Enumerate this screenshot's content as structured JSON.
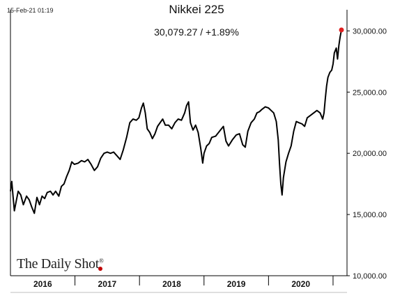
{
  "header": {
    "timestamp": "15-Feb-21 01:19",
    "title": "Nikkei 225",
    "subtitle": "30,079.27  /  +1.89%"
  },
  "watermark": {
    "text": "The Daily Shot",
    "mark": "®"
  },
  "colors": {
    "line": "#000000",
    "last_point": "#e02020",
    "axis": "#000000"
  },
  "chart_data": {
    "type": "line",
    "title": "Nikkei 225",
    "subtitle": "30,079.27 / +1.89%",
    "xlabel": "",
    "ylabel": "",
    "grid": false,
    "legend": "none",
    "x_categories": [
      "2016",
      "2017",
      "2018",
      "2019",
      "2020"
    ],
    "xlim": [
      2016.0,
      2021.13
    ],
    "ylim": [
      10000,
      31500
    ],
    "y_ticks": [
      10000,
      15000,
      20000,
      25000,
      30000
    ],
    "y_tick_labels": [
      "10,000.00",
      "15,000.00",
      "20,000.00",
      "25,000.00",
      "30,000.00"
    ],
    "last_value": 30079.27,
    "series": [
      {
        "values": [
          [
            2016.0,
            16900
          ],
          [
            2016.02,
            17700
          ],
          [
            2016.04,
            16500
          ],
          [
            2016.06,
            15300
          ],
          [
            2016.09,
            16100
          ],
          [
            2016.12,
            16900
          ],
          [
            2016.16,
            16600
          ],
          [
            2016.2,
            15800
          ],
          [
            2016.25,
            16500
          ],
          [
            2016.29,
            16200
          ],
          [
            2016.33,
            15600
          ],
          [
            2016.37,
            15100
          ],
          [
            2016.41,
            16400
          ],
          [
            2016.45,
            15800
          ],
          [
            2016.49,
            16500
          ],
          [
            2016.53,
            16300
          ],
          [
            2016.57,
            16800
          ],
          [
            2016.62,
            16900
          ],
          [
            2016.66,
            16600
          ],
          [
            2016.7,
            16900
          ],
          [
            2016.75,
            16500
          ],
          [
            2016.79,
            17300
          ],
          [
            2016.83,
            17500
          ],
          [
            2016.87,
            18100
          ],
          [
            2016.91,
            18600
          ],
          [
            2016.95,
            19300
          ],
          [
            2016.99,
            19100
          ],
          [
            2017.05,
            19200
          ],
          [
            2017.1,
            19400
          ],
          [
            2017.15,
            19300
          ],
          [
            2017.2,
            19500
          ],
          [
            2017.25,
            19100
          ],
          [
            2017.3,
            18600
          ],
          [
            2017.35,
            18900
          ],
          [
            2017.4,
            19600
          ],
          [
            2017.45,
            20000
          ],
          [
            2017.5,
            20100
          ],
          [
            2017.55,
            20000
          ],
          [
            2017.6,
            20100
          ],
          [
            2017.65,
            19800
          ],
          [
            2017.7,
            19500
          ],
          [
            2017.75,
            20300
          ],
          [
            2017.8,
            21300
          ],
          [
            2017.85,
            22500
          ],
          [
            2017.9,
            22800
          ],
          [
            2017.95,
            22700
          ],
          [
            2017.99,
            22900
          ],
          [
            2018.03,
            23700
          ],
          [
            2018.06,
            24100
          ],
          [
            2018.09,
            23300
          ],
          [
            2018.12,
            22000
          ],
          [
            2018.16,
            21700
          ],
          [
            2018.2,
            21200
          ],
          [
            2018.24,
            21600
          ],
          [
            2018.28,
            22200
          ],
          [
            2018.32,
            22500
          ],
          [
            2018.36,
            22800
          ],
          [
            2018.4,
            22300
          ],
          [
            2018.45,
            22300
          ],
          [
            2018.5,
            22000
          ],
          [
            2018.55,
            22500
          ],
          [
            2018.6,
            22800
          ],
          [
            2018.65,
            22700
          ],
          [
            2018.7,
            23300
          ],
          [
            2018.73,
            23900
          ],
          [
            2018.76,
            24200
          ],
          [
            2018.79,
            22500
          ],
          [
            2018.83,
            21900
          ],
          [
            2018.87,
            22300
          ],
          [
            2018.91,
            21700
          ],
          [
            2018.95,
            20400
          ],
          [
            2018.98,
            19200
          ],
          [
            2019.0,
            20000
          ],
          [
            2019.04,
            20600
          ],
          [
            2019.08,
            20800
          ],
          [
            2019.12,
            21300
          ],
          [
            2019.18,
            21400
          ],
          [
            2019.24,
            21800
          ],
          [
            2019.3,
            22200
          ],
          [
            2019.34,
            21000
          ],
          [
            2019.38,
            20600
          ],
          [
            2019.44,
            21100
          ],
          [
            2019.5,
            21500
          ],
          [
            2019.55,
            21600
          ],
          [
            2019.6,
            20700
          ],
          [
            2019.64,
            20500
          ],
          [
            2019.68,
            21800
          ],
          [
            2019.73,
            22500
          ],
          [
            2019.78,
            22800
          ],
          [
            2019.82,
            23300
          ],
          [
            2019.86,
            23400
          ],
          [
            2019.9,
            23600
          ],
          [
            2019.95,
            23800
          ],
          [
            2020.0,
            23700
          ],
          [
            2020.04,
            23500
          ],
          [
            2020.08,
            23300
          ],
          [
            2020.12,
            22600
          ],
          [
            2020.15,
            21100
          ],
          [
            2020.17,
            19200
          ],
          [
            2020.19,
            17500
          ],
          [
            2020.21,
            16600
          ],
          [
            2020.23,
            18000
          ],
          [
            2020.27,
            19300
          ],
          [
            2020.31,
            20000
          ],
          [
            2020.35,
            20600
          ],
          [
            2020.39,
            21800
          ],
          [
            2020.43,
            22600
          ],
          [
            2020.47,
            22500
          ],
          [
            2020.52,
            22400
          ],
          [
            2020.56,
            22200
          ],
          [
            2020.6,
            22900
          ],
          [
            2020.65,
            23100
          ],
          [
            2020.7,
            23300
          ],
          [
            2020.75,
            23500
          ],
          [
            2020.8,
            23300
          ],
          [
            2020.84,
            22800
          ],
          [
            2020.86,
            23300
          ],
          [
            2020.88,
            24500
          ],
          [
            2020.9,
            25500
          ],
          [
            2020.92,
            26200
          ],
          [
            2020.95,
            26600
          ],
          [
            2020.98,
            26800
          ],
          [
            2021.0,
            27300
          ],
          [
            2021.02,
            28200
          ],
          [
            2021.05,
            28600
          ],
          [
            2021.07,
            27700
          ],
          [
            2021.09,
            28800
          ],
          [
            2021.11,
            29500
          ],
          [
            2021.13,
            30079
          ]
        ]
      }
    ]
  }
}
